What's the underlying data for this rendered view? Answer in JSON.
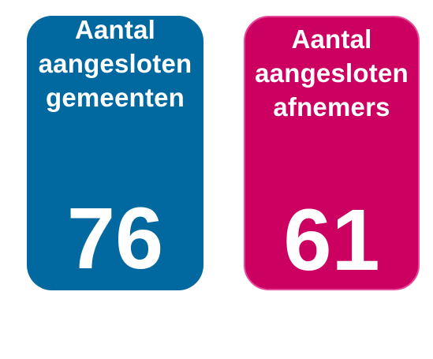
{
  "cards": [
    {
      "title_lines": [
        "Aantal",
        "aangesloten",
        "gemeenten"
      ],
      "value": "76",
      "color": "#0169a0"
    },
    {
      "title_lines": [
        "Aantal",
        "aangesloten",
        "afnemers"
      ],
      "value": "61",
      "color": "#cc0060"
    }
  ]
}
